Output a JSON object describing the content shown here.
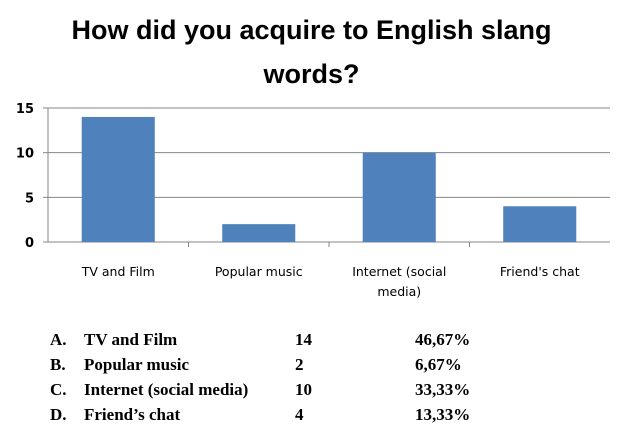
{
  "chart_data": {
    "type": "bar",
    "title": "How did you acquire to English slang words?",
    "title_lines": [
      "How did you acquire to English slang",
      "words?"
    ],
    "categories": [
      "TV and Film",
      "Popular music",
      "Internet (social media)",
      "Friend's chat"
    ],
    "category_lines": [
      [
        "TV and Film"
      ],
      [
        "Popular music"
      ],
      [
        "Internet (social",
        "media)"
      ],
      [
        "Friend's chat"
      ]
    ],
    "values": [
      14,
      2,
      10,
      4
    ],
    "ylim": [
      0,
      15
    ],
    "yticks": [
      0,
      5,
      10,
      15
    ],
    "xlabel": "",
    "ylabel": "",
    "grid": true,
    "legend": "none",
    "bar_color": "#4f81bd",
    "grid_color": "#868686"
  },
  "summary": [
    {
      "letter": "A.",
      "label": "TV and Film",
      "count": "14",
      "percent": "46,67%"
    },
    {
      "letter": "B.",
      "label": "Popular music",
      "count": "2",
      "percent": "6,67%"
    },
    {
      "letter": "C.",
      "label": "Internet (social media)",
      "count": "10",
      "percent": "33,33%"
    },
    {
      "letter": "D.",
      "label": "Friend’s chat",
      "count": "4",
      "percent": "13,33%"
    }
  ]
}
